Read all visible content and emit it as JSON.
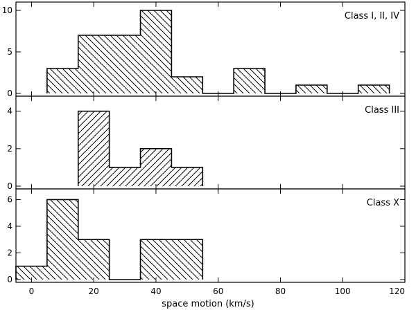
{
  "chart_data": [
    {
      "type": "bar",
      "title": "Class I, II, IV",
      "bin_edges": [
        5,
        15,
        25,
        35,
        45,
        55,
        65,
        75,
        85,
        95,
        105,
        115
      ],
      "values": [
        3,
        7,
        7,
        10,
        2,
        0,
        3,
        0,
        1,
        0,
        1
      ],
      "hatch": "diagonal-down",
      "ylim": [
        0,
        11
      ],
      "yticks": [
        0,
        5,
        10
      ]
    },
    {
      "type": "bar",
      "title": "Class III",
      "bin_edges": [
        15,
        25,
        35,
        45,
        55
      ],
      "values": [
        4,
        1,
        2,
        1
      ],
      "hatch": "diagonal-up",
      "ylim": [
        0,
        4.8
      ],
      "yticks": [
        0,
        2,
        4
      ]
    },
    {
      "type": "bar",
      "title": "Class X",
      "bin_edges": [
        -5,
        5,
        15,
        25,
        35,
        45,
        55
      ],
      "values": [
        1,
        6,
        3,
        0,
        3,
        3
      ],
      "hatch": "diagonal-down",
      "ylim": [
        0,
        6.8
      ],
      "yticks": [
        0,
        2,
        4,
        6
      ]
    }
  ],
  "xaxis": {
    "label": "space motion (km/s)",
    "xlim": [
      -5,
      120
    ],
    "ticks": [
      0,
      20,
      40,
      60,
      80,
      100,
      120
    ]
  },
  "grid": false,
  "colors": {
    "line": "#000000",
    "background": "#ffffff"
  }
}
